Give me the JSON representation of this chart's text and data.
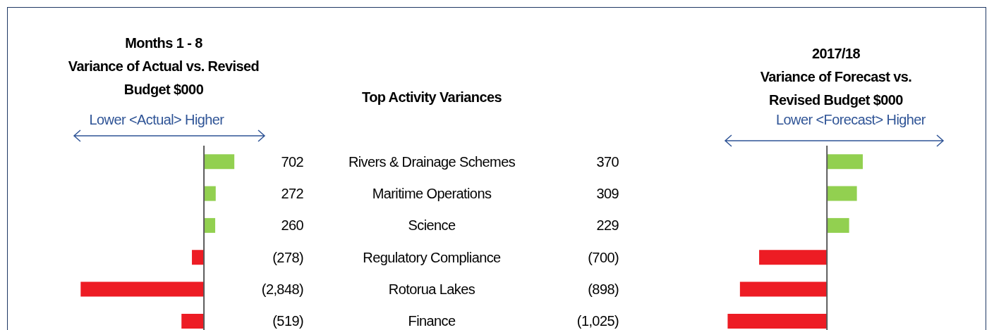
{
  "chart_data": [
    {
      "type": "bar",
      "orientation": "horizontal",
      "title": "Months 1 - 8\nVariance of Actual vs. Revised\nBudget $000",
      "ylabel": "Top Activity Variances",
      "annotations": [
        "Lower <Actual> Higher"
      ],
      "categories": [
        "Rivers & Drainage Schemes",
        "Maritime Operations",
        "Science",
        "Regulatory Compliance",
        "Rotorua Lakes",
        "Finance"
      ],
      "values": [
        702,
        272,
        260,
        -278,
        -2848,
        -519
      ],
      "colors": [
        "#92d050",
        "#92d050",
        "#92d050",
        "#ed1c24",
        "#ed1c24",
        "#ed1c24"
      ],
      "value_labels": [
        "702",
        "272",
        "260",
        "(278)",
        "(2,848)",
        "(519)"
      ],
      "xlim": [
        -3000,
        1400
      ],
      "tick_labels": "y"
    },
    {
      "type": "bar",
      "orientation": "horizontal",
      "title": "2017/18\nVariance of Forecast vs.\nRevised Budget $000",
      "annotations": [
        "Lower <Forecast> Higher"
      ],
      "categories": [
        null,
        null,
        null,
        null,
        null,
        null
      ],
      "values": [
        370,
        309,
        229,
        -700,
        -898,
        -1025
      ],
      "colors": [
        "#92d050",
        "#92d050",
        "#92d050",
        "#ed1c24",
        "#ed1c24",
        "#ed1c24"
      ],
      "value_labels": [
        "370",
        "309",
        "229",
        "(700)",
        "(898)",
        "(1,025)"
      ],
      "xlim": [
        -1050,
        1200
      ],
      "tick_labels": false
    }
  ]
}
